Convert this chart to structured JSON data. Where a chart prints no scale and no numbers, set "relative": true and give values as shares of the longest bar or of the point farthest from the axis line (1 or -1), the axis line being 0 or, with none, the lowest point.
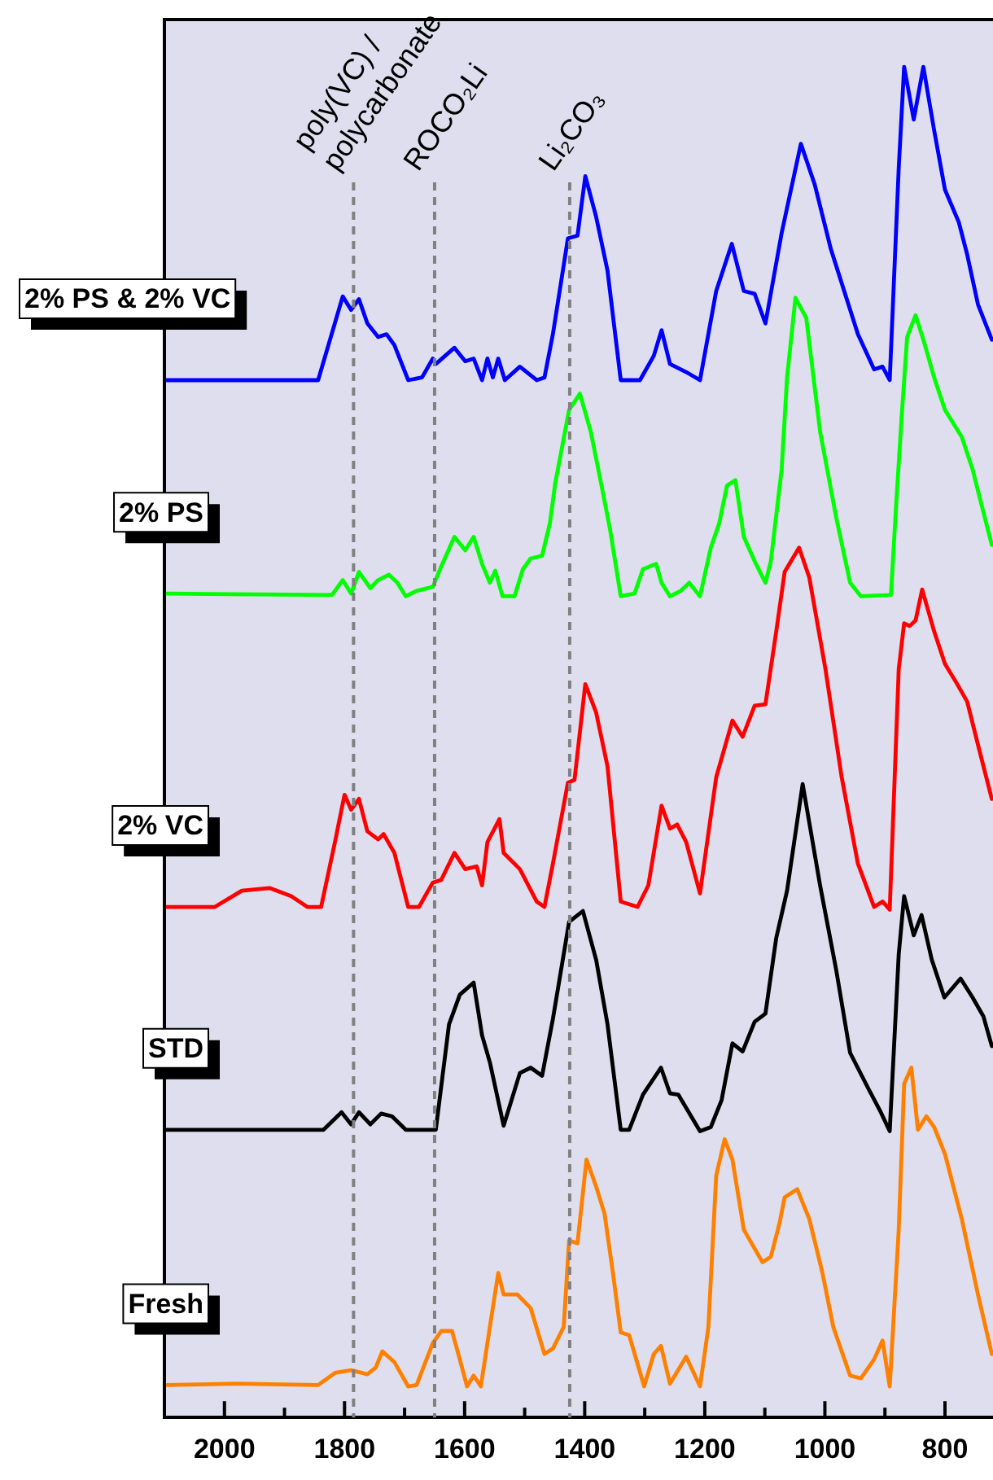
{
  "chart_data": {
    "type": "line",
    "relative": true,
    "tick_labels": "x",
    "xlim": [
      2100,
      720
    ],
    "xticks": [
      {
        "value": 2100,
        "label": null
      },
      2000,
      {
        "value": 1900,
        "label": null
      },
      1800,
      {
        "value": 1700,
        "label": null
      },
      1600,
      {
        "value": 1500,
        "label": null
      },
      1400,
      {
        "value": 1300,
        "label": null
      },
      1200,
      {
        "value": 1100,
        "label": null
      },
      1000,
      {
        "value": 900,
        "label": null
      },
      800
    ],
    "ref_lines": [
      {
        "axis": "x",
        "value": 1785,
        "label": "poly(VC) /\npolycarbonate",
        "color": "#808080",
        "line_style": "dashed"
      },
      {
        "axis": "x",
        "value": 1650,
        "label": "ROCO₂Li",
        "color": "#808080",
        "line_style": "dashed"
      },
      {
        "axis": "x",
        "value": 1425,
        "label": "Li₂CO₃",
        "color": "#808080",
        "line_style": "dashed"
      }
    ],
    "series": [
      {
        "name": "2% PS & 2% VC",
        "color": "#0000ff",
        "x": [
          2098,
          1844,
          1803,
          1789,
          1776,
          1762,
          1744,
          1730,
          1717,
          1694,
          1671,
          1653,
          1648,
          1617,
          1599,
          1585,
          1571,
          1562,
          1553,
          1544,
          1533,
          1508,
          1480,
          1467,
          1453,
          1428,
          1412,
          1399,
          1381,
          1362,
          1340,
          1308,
          1285,
          1272,
          1258,
          1231,
          1208,
          1181,
          1155,
          1135,
          1117,
          1099,
          1072,
          1040,
          1017,
          990,
          945,
          918,
          904,
          892,
          877,
          868,
          852,
          836,
          818,
          800,
          777,
          763,
          745,
          722
        ],
        "values": [
          0.768,
          0.768,
          0.83,
          0.82,
          0.828,
          0.81,
          0.8,
          0.802,
          0.794,
          0.768,
          0.77,
          0.784,
          0.78,
          0.792,
          0.782,
          0.784,
          0.768,
          0.784,
          0.77,
          0.784,
          0.768,
          0.778,
          0.768,
          0.77,
          0.802,
          0.873,
          0.875,
          0.919,
          0.889,
          0.849,
          0.768,
          0.768,
          0.786,
          0.805,
          0.78,
          0.774,
          0.768,
          0.834,
          0.869,
          0.834,
          0.832,
          0.81,
          0.877,
          0.943,
          0.913,
          0.865,
          0.802,
          0.776,
          0.778,
          0.768,
          0.925,
          1,
          0.961,
          1,
          0.953,
          0.909,
          0.885,
          0.861,
          0.824,
          0.798
        ]
      },
      {
        "name": "2% PS",
        "color": "#00ff00",
        "x": [
          2098,
          1821,
          1803,
          1789,
          1776,
          1757,
          1744,
          1726,
          1712,
          1698,
          1680,
          1653,
          1639,
          1617,
          1599,
          1585,
          1571,
          1558,
          1549,
          1537,
          1517,
          1503,
          1490,
          1471,
          1458,
          1449,
          1426,
          1408,
          1390,
          1372,
          1358,
          1340,
          1317,
          1303,
          1281,
          1272,
          1258,
          1240,
          1226,
          1208,
          1190,
          1176,
          1163,
          1149,
          1135,
          1117,
          1099,
          1090,
          1072,
          1063,
          1049,
          1031,
          1008,
          981,
          958,
          940,
          890,
          881,
          872,
          863,
          849,
          836,
          818,
          800,
          772,
          754,
          745,
          722
        ],
        "values": [
          0.61,
          0.609,
          0.62,
          0.61,
          0.626,
          0.614,
          0.62,
          0.624,
          0.618,
          0.608,
          0.612,
          0.615,
          0.63,
          0.652,
          0.642,
          0.652,
          0.632,
          0.618,
          0.627,
          0.608,
          0.608,
          0.628,
          0.636,
          0.638,
          0.662,
          0.692,
          0.746,
          0.758,
          0.73,
          0.69,
          0.658,
          0.608,
          0.61,
          0.628,
          0.632,
          0.618,
          0.608,
          0.612,
          0.618,
          0.608,
          0.644,
          0.662,
          0.69,
          0.694,
          0.652,
          0.634,
          0.618,
          0.634,
          0.702,
          0.77,
          0.829,
          0.814,
          0.73,
          0.666,
          0.618,
          0.608,
          0.609,
          0.678,
          0.742,
          0.8,
          0.816,
          0.798,
          0.77,
          0.746,
          0.726,
          0.702,
          0.686,
          0.646
        ]
      },
      {
        "name": "2% VC",
        "color": "#ff0000",
        "x": [
          2098,
          2016,
          1971,
          1925,
          1889,
          1862,
          1839,
          1816,
          1800,
          1789,
          1776,
          1762,
          1744,
          1735,
          1717,
          1694,
          1676,
          1653,
          1639,
          1617,
          1599,
          1580,
          1571,
          1562,
          1542,
          1535,
          1508,
          1480,
          1467,
          1453,
          1428,
          1417,
          1399,
          1381,
          1362,
          1340,
          1312,
          1294,
          1272,
          1258,
          1246,
          1231,
          1208,
          1181,
          1154,
          1137,
          1117,
          1099,
          1081,
          1067,
          1043,
          1026,
          999,
          972,
          945,
          918,
          904,
          892,
          877,
          868,
          859,
          849,
          838,
          818,
          800,
          781,
          763,
          745,
          722
        ],
        "values": [
          0.378,
          0.378,
          0.39,
          0.392,
          0.386,
          0.378,
          0.378,
          0.426,
          0.461,
          0.45,
          0.458,
          0.434,
          0.428,
          0.432,
          0.418,
          0.378,
          0.378,
          0.396,
          0.398,
          0.418,
          0.406,
          0.408,
          0.394,
          0.426,
          0.443,
          0.418,
          0.406,
          0.382,
          0.378,
          0.41,
          0.47,
          0.472,
          0.543,
          0.522,
          0.482,
          0.382,
          0.378,
          0.394,
          0.453,
          0.436,
          0.439,
          0.426,
          0.388,
          0.474,
          0.516,
          0.504,
          0.527,
          0.528,
          0.582,
          0.626,
          0.644,
          0.622,
          0.554,
          0.474,
          0.41,
          0.378,
          0.382,
          0.376,
          0.554,
          0.588,
          0.586,
          0.59,
          0.613,
          0.582,
          0.558,
          0.544,
          0.53,
          0.498,
          0.458
        ]
      },
      {
        "name": "STD",
        "color": "#000000",
        "x": [
          2098,
          1835,
          1805,
          1789,
          1776,
          1757,
          1739,
          1721,
          1698,
          1648,
          1626,
          1608,
          1585,
          1571,
          1558,
          1535,
          1508,
          1490,
          1471,
          1453,
          1426,
          1403,
          1381,
          1362,
          1340,
          1326,
          1303,
          1273,
          1258,
          1244,
          1208,
          1190,
          1172,
          1154,
          1137,
          1117,
          1099,
          1081,
          1063,
          1037,
          1008,
          981,
          958,
          927,
          908,
          892,
          877,
          868,
          852,
          839,
          822,
          801,
          774,
          754,
          736,
          722
        ],
        "values": [
          0.213,
          0.213,
          0.226,
          0.217,
          0.226,
          0.217,
          0.225,
          0.223,
          0.213,
          0.213,
          0.291,
          0.313,
          0.322,
          0.283,
          0.263,
          0.216,
          0.255,
          0.259,
          0.253,
          0.295,
          0.367,
          0.375,
          0.339,
          0.291,
          0.213,
          0.213,
          0.239,
          0.259,
          0.24,
          0.239,
          0.212,
          0.215,
          0.235,
          0.277,
          0.271,
          0.293,
          0.299,
          0.355,
          0.39,
          0.469,
          0.394,
          0.331,
          0.27,
          0.243,
          0.227,
          0.212,
          0.343,
          0.386,
          0.357,
          0.372,
          0.339,
          0.311,
          0.325,
          0.311,
          0.297,
          0.275
        ]
      },
      {
        "name": "Fresh",
        "color": "#ff8000",
        "x": [
          2098,
          1980,
          1844,
          1816,
          1789,
          1762,
          1748,
          1737,
          1717,
          1694,
          1680,
          1653,
          1639,
          1621,
          1608,
          1596,
          1585,
          1573,
          1558,
          1544,
          1535,
          1512,
          1490,
          1467,
          1453,
          1435,
          1426,
          1412,
          1397,
          1381,
          1367,
          1353,
          1340,
          1326,
          1301,
          1285,
          1273,
          1258,
          1231,
          1208,
          1194,
          1181,
          1167,
          1154,
          1135,
          1104,
          1090,
          1076,
          1067,
          1046,
          1026,
          1004,
          986,
          958,
          940,
          918,
          904,
          892,
          877,
          868,
          856,
          845,
          831,
          818,
          800,
          772,
          745,
          722
        ],
        "values": [
          0.024,
          0.025,
          0.024,
          0.033,
          0.035,
          0.032,
          0.037,
          0.049,
          0.041,
          0.023,
          0.024,
          0.055,
          0.064,
          0.064,
          0.043,
          0.023,
          0.031,
          0.023,
          0.067,
          0.107,
          0.091,
          0.091,
          0.081,
          0.047,
          0.051,
          0.067,
          0.131,
          0.129,
          0.191,
          0.171,
          0.151,
          0.107,
          0.063,
          0.061,
          0.023,
          0.047,
          0.053,
          0.025,
          0.045,
          0.023,
          0.067,
          0.179,
          0.206,
          0.191,
          0.139,
          0.115,
          0.119,
          0.143,
          0.163,
          0.169,
          0.147,
          0.107,
          0.067,
          0.031,
          0.029,
          0.043,
          0.057,
          0.023,
          0.139,
          0.247,
          0.259,
          0.213,
          0.223,
          0.215,
          0.195,
          0.147,
          0.091,
          0.047
        ]
      }
    ]
  }
}
